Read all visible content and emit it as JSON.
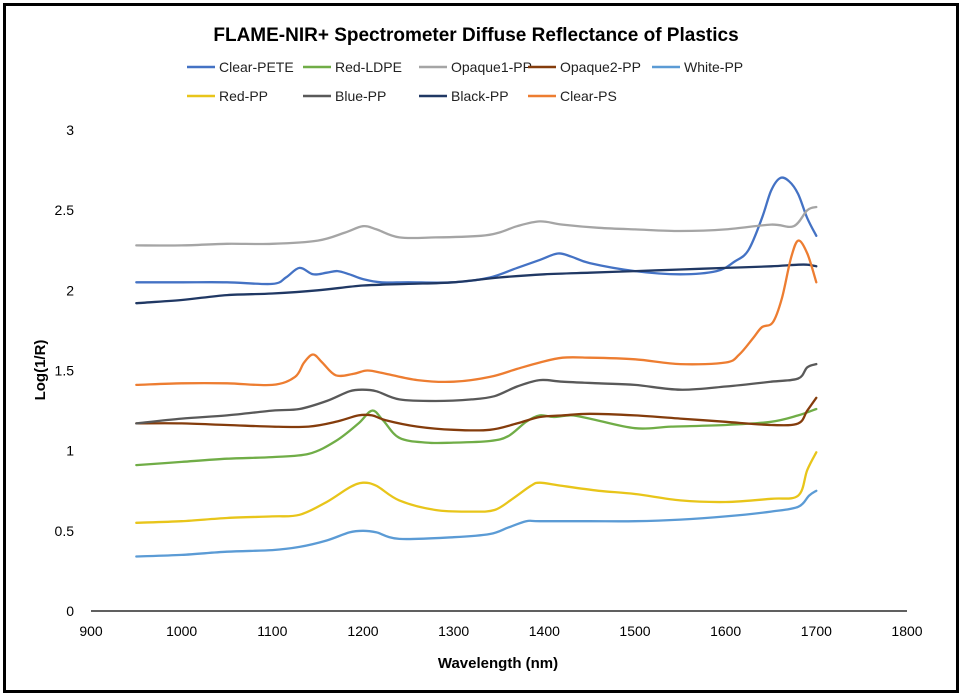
{
  "chart_data": {
    "type": "line",
    "title": "FLAME-NIR+ Spectrometer Diffuse Reflectance of Plastics",
    "xlabel": "Wavelength (nm)",
    "ylabel": "Log(1/R)",
    "xlim": [
      900,
      1800
    ],
    "ylim": [
      0,
      3
    ],
    "xticks": [
      900,
      1000,
      1100,
      1200,
      1300,
      1400,
      1500,
      1600,
      1700,
      1800
    ],
    "yticks": [
      0,
      0.5,
      1,
      1.5,
      2,
      2.5,
      3
    ],
    "ytick_labels": [
      "0",
      "0.5",
      "1",
      "1.5",
      "2",
      "2.5",
      "3"
    ],
    "grid": false,
    "legend_position": "top",
    "series": [
      {
        "name": "Clear-PETE",
        "color": "#4472c4",
        "x": [
          950,
          1000,
          1050,
          1100,
          1115,
          1130,
          1145,
          1160,
          1172,
          1185,
          1200,
          1220,
          1250,
          1300,
          1340,
          1370,
          1395,
          1415,
          1430,
          1450,
          1500,
          1550,
          1590,
          1610,
          1625,
          1640,
          1650,
          1660,
          1670,
          1680,
          1690,
          1700
        ],
        "y": [
          2.05,
          2.05,
          2.05,
          2.04,
          2.08,
          2.14,
          2.1,
          2.11,
          2.12,
          2.1,
          2.07,
          2.05,
          2.05,
          2.05,
          2.08,
          2.14,
          2.19,
          2.23,
          2.21,
          2.17,
          2.12,
          2.1,
          2.12,
          2.18,
          2.25,
          2.45,
          2.62,
          2.7,
          2.68,
          2.6,
          2.45,
          2.34
        ]
      },
      {
        "name": "Red-LDPE",
        "color": "#70ad47",
        "x": [
          950,
          1000,
          1050,
          1100,
          1140,
          1170,
          1195,
          1210,
          1222,
          1240,
          1270,
          1300,
          1340,
          1360,
          1380,
          1395,
          1410,
          1430,
          1450,
          1500,
          1540,
          1600,
          1650,
          1680,
          1700
        ],
        "y": [
          0.91,
          0.93,
          0.95,
          0.96,
          0.98,
          1.06,
          1.17,
          1.25,
          1.19,
          1.08,
          1.05,
          1.05,
          1.06,
          1.09,
          1.18,
          1.22,
          1.21,
          1.22,
          1.2,
          1.14,
          1.15,
          1.16,
          1.18,
          1.22,
          1.26
        ]
      },
      {
        "name": "Opaque1-PP",
        "color": "#a5a5a5",
        "x": [
          950,
          1000,
          1050,
          1100,
          1150,
          1180,
          1200,
          1215,
          1240,
          1280,
          1330,
          1350,
          1370,
          1395,
          1420,
          1460,
          1500,
          1550,
          1600,
          1650,
          1675,
          1690,
          1700
        ],
        "y": [
          2.28,
          2.28,
          2.29,
          2.29,
          2.31,
          2.36,
          2.4,
          2.38,
          2.33,
          2.33,
          2.34,
          2.36,
          2.4,
          2.43,
          2.41,
          2.39,
          2.38,
          2.37,
          2.38,
          2.41,
          2.4,
          2.5,
          2.52
        ]
      },
      {
        "name": "Opaque2-PP",
        "color": "#843c0c",
        "x": [
          950,
          1000,
          1050,
          1100,
          1140,
          1170,
          1195,
          1210,
          1225,
          1260,
          1300,
          1340,
          1370,
          1395,
          1420,
          1450,
          1500,
          1550,
          1600,
          1650,
          1680,
          1690,
          1700
        ],
        "y": [
          1.17,
          1.17,
          1.16,
          1.15,
          1.15,
          1.18,
          1.22,
          1.22,
          1.19,
          1.15,
          1.13,
          1.13,
          1.17,
          1.21,
          1.22,
          1.23,
          1.22,
          1.2,
          1.18,
          1.16,
          1.17,
          1.25,
          1.33
        ]
      },
      {
        "name": "White-PP",
        "color": "#5b9bd5",
        "x": [
          950,
          1000,
          1050,
          1100,
          1130,
          1160,
          1185,
          1200,
          1215,
          1240,
          1300,
          1340,
          1360,
          1380,
          1395,
          1450,
          1500,
          1550,
          1600,
          1650,
          1680,
          1692,
          1700
        ],
        "y": [
          0.34,
          0.35,
          0.37,
          0.38,
          0.4,
          0.44,
          0.49,
          0.5,
          0.49,
          0.45,
          0.46,
          0.48,
          0.52,
          0.56,
          0.56,
          0.56,
          0.56,
          0.57,
          0.59,
          0.62,
          0.65,
          0.72,
          0.75
        ]
      },
      {
        "name": "Red-PP",
        "color": "#e8c51a",
        "x": [
          950,
          1000,
          1050,
          1100,
          1130,
          1160,
          1185,
          1200,
          1215,
          1240,
          1280,
          1320,
          1345,
          1365,
          1385,
          1395,
          1420,
          1460,
          1500,
          1550,
          1600,
          1650,
          1680,
          1690,
          1700
        ],
        "y": [
          0.55,
          0.56,
          0.58,
          0.59,
          0.6,
          0.68,
          0.77,
          0.8,
          0.78,
          0.69,
          0.63,
          0.62,
          0.63,
          0.7,
          0.78,
          0.8,
          0.78,
          0.75,
          0.73,
          0.69,
          0.68,
          0.7,
          0.72,
          0.88,
          0.99
        ]
      },
      {
        "name": "Blue-PP",
        "color": "#595959",
        "x": [
          950,
          1000,
          1050,
          1100,
          1130,
          1160,
          1185,
          1200,
          1215,
          1240,
          1280,
          1320,
          1345,
          1370,
          1395,
          1420,
          1460,
          1500,
          1550,
          1600,
          1650,
          1680,
          1690,
          1700
        ],
        "y": [
          1.17,
          1.2,
          1.22,
          1.25,
          1.26,
          1.31,
          1.37,
          1.38,
          1.37,
          1.32,
          1.31,
          1.32,
          1.34,
          1.4,
          1.44,
          1.43,
          1.42,
          1.41,
          1.38,
          1.4,
          1.43,
          1.45,
          1.52,
          1.54
        ]
      },
      {
        "name": "Black-PP",
        "color": "#203864",
        "x": [
          950,
          1000,
          1050,
          1100,
          1150,
          1200,
          1250,
          1300,
          1350,
          1400,
          1450,
          1500,
          1550,
          1600,
          1650,
          1680,
          1690,
          1700
        ],
        "y": [
          1.92,
          1.94,
          1.97,
          1.98,
          2.0,
          2.03,
          2.04,
          2.05,
          2.08,
          2.1,
          2.11,
          2.12,
          2.13,
          2.14,
          2.15,
          2.16,
          2.16,
          2.15
        ]
      },
      {
        "name": "Clear-PS",
        "color": "#ed7d31",
        "x": [
          950,
          1000,
          1050,
          1100,
          1125,
          1135,
          1145,
          1155,
          1170,
          1190,
          1205,
          1225,
          1260,
          1300,
          1340,
          1370,
          1395,
          1420,
          1450,
          1500,
          1550,
          1600,
          1615,
          1630,
          1640,
          1652,
          1662,
          1672,
          1680,
          1690,
          1700
        ],
        "y": [
          1.41,
          1.42,
          1.42,
          1.41,
          1.46,
          1.55,
          1.6,
          1.55,
          1.47,
          1.48,
          1.5,
          1.48,
          1.44,
          1.43,
          1.46,
          1.51,
          1.55,
          1.58,
          1.58,
          1.57,
          1.54,
          1.55,
          1.6,
          1.7,
          1.77,
          1.8,
          1.95,
          2.2,
          2.31,
          2.23,
          2.05
        ]
      }
    ]
  }
}
